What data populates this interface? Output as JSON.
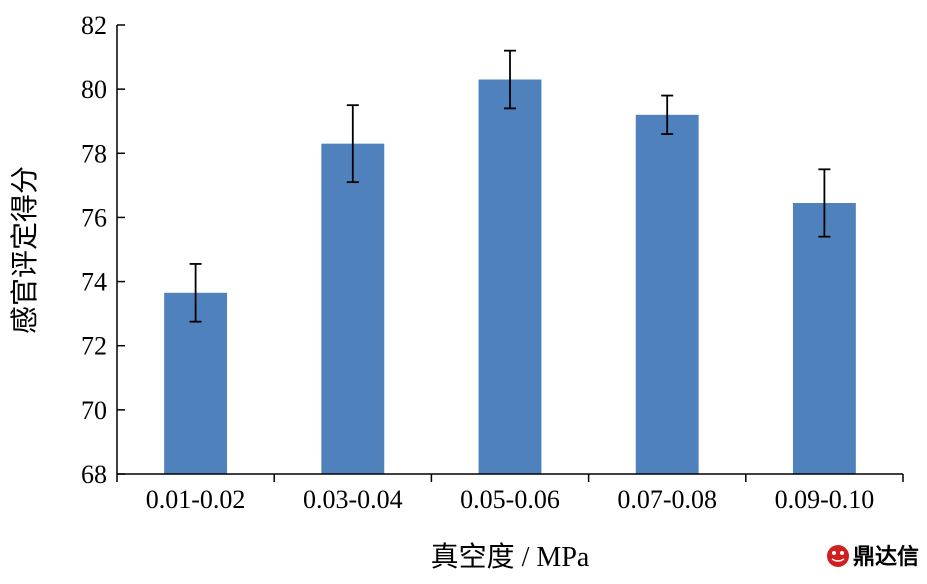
{
  "chart_data": {
    "type": "bar",
    "title": "",
    "xlabel": "真空度 / MPa",
    "ylabel": "感官评定得分",
    "categories": [
      "0.01-0.02",
      "0.03-0.04",
      "0.05-0.06",
      "0.07-0.08",
      "0.09-0.10"
    ],
    "values": [
      73.65,
      78.3,
      80.3,
      79.2,
      76.45
    ],
    "errors": [
      0.9,
      1.2,
      0.9,
      0.6,
      1.05
    ],
    "ylim": [
      68,
      82
    ],
    "yticks": [
      "68",
      "70",
      "72",
      "74",
      "76",
      "78",
      "80",
      "82"
    ],
    "grid": false,
    "bar_color": "#4f81bd"
  },
  "watermark": {
    "icon": "wechat-logo-icon",
    "text": "鼎达信",
    "color": "#d11f1f"
  }
}
